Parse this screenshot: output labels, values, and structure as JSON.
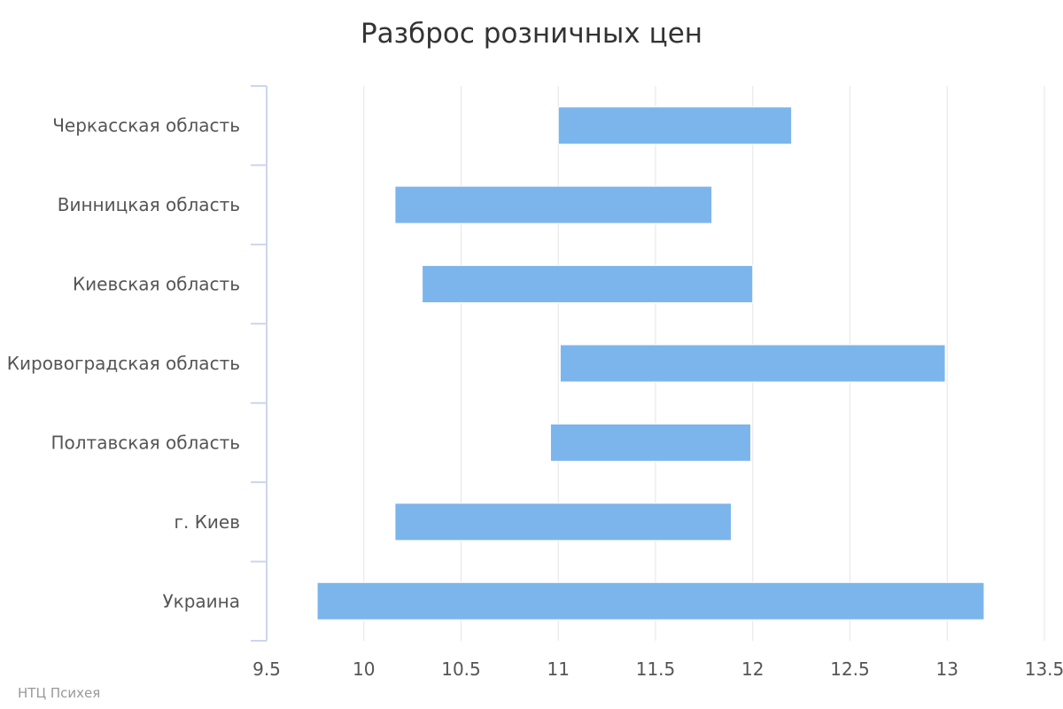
{
  "chart_data": {
    "type": "bar",
    "subtype": "floating-range-horizontal",
    "title": "Разброс розничных цен",
    "xlabel": "",
    "ylabel": "",
    "categories": [
      "Черкасская область",
      "Винницкая область",
      "Киевская область",
      "Кировоградская область",
      "Полтавская область",
      "г. Киев",
      "Украина"
    ],
    "ranges": [
      [
        11.0,
        12.2
      ],
      [
        10.16,
        11.79
      ],
      [
        10.3,
        12.0
      ],
      [
        11.01,
        12.99
      ],
      [
        10.96,
        11.99
      ],
      [
        10.16,
        11.89
      ],
      [
        9.76,
        13.19
      ]
    ],
    "xlim": [
      9.5,
      13.5
    ],
    "xticks": [
      "9.5",
      "10",
      "10.5",
      "11",
      "11.5",
      "12",
      "12.5",
      "13",
      "13.5"
    ],
    "grid": true,
    "legend": false,
    "bar_color": "#7cb5ec"
  },
  "credit": "НТЦ Психея",
  "colors": {
    "bar": "#7cb5ec",
    "grid": "#e6e6e6",
    "axis": "#ccd6eb",
    "title": "#333333",
    "label": "#555555",
    "credit": "#999999"
  }
}
